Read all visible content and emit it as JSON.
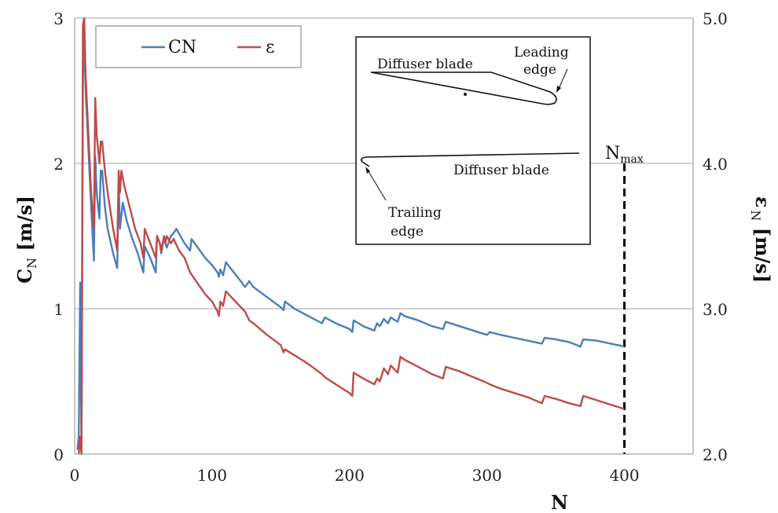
{
  "chart_data": {
    "type": "line",
    "title": "",
    "xlabel": "N",
    "ylabel_left": "C",
    "ylabel_left_sub": "N",
    "ylabel_left_unit": "[m/s]",
    "ylabel_right": "ε",
    "ylabel_right_sub": "N",
    "ylabel_right_unit": "[m/s]",
    "xlim": [
      0,
      450
    ],
    "ylim_left": [
      0,
      3
    ],
    "ylim_right": [
      2.0,
      5.0
    ],
    "xticks": [
      "0",
      "100",
      "200",
      "300",
      "400"
    ],
    "xtick_values": [
      0,
      100,
      200,
      300,
      400
    ],
    "yticks_left": [
      "0",
      "1",
      "2",
      "3"
    ],
    "ytick_values_left": [
      0,
      1,
      2,
      3
    ],
    "yticks_right": [
      "2.0",
      "3.0",
      "4.0",
      "5.0"
    ],
    "ytick_values_right": [
      2.0,
      3.0,
      4.0,
      5.0
    ],
    "grid": "horizontal",
    "legend_position": "top-left",
    "series": [
      {
        "name": "CN",
        "axis": "left",
        "color": "#4a7ebb",
        "x": [
          2,
          3,
          4,
          5,
          6,
          7,
          8,
          10,
          12,
          14,
          15,
          16,
          18,
          19,
          20,
          22,
          24,
          28,
          31,
          32,
          33,
          35,
          38,
          42,
          46,
          50,
          51,
          55,
          59,
          60,
          62,
          63,
          65,
          66,
          67,
          70,
          72,
          74,
          80,
          84,
          85,
          95,
          100,
          104,
          105,
          106,
          108,
          110,
          115,
          120,
          124,
          127,
          130,
          140,
          150,
          152,
          153,
          160,
          170,
          180,
          182,
          190,
          200,
          202,
          203,
          210,
          218,
          220,
          222,
          225,
          228,
          230,
          235,
          237,
          240,
          250,
          260,
          268,
          270,
          280,
          290,
          300,
          302,
          310,
          320,
          330,
          340,
          342,
          350,
          360,
          368,
          370,
          380,
          390,
          400
        ],
        "values": [
          0.03,
          0.12,
          1.18,
          0.05,
          2.55,
          2.9,
          2.5,
          2.1,
          1.7,
          1.33,
          2.05,
          1.8,
          1.62,
          1.95,
          1.95,
          1.7,
          1.55,
          1.38,
          1.28,
          1.88,
          1.55,
          1.73,
          1.6,
          1.48,
          1.38,
          1.25,
          1.43,
          1.35,
          1.25,
          1.5,
          1.45,
          1.38,
          1.5,
          1.45,
          1.42,
          1.5,
          1.52,
          1.55,
          1.45,
          1.4,
          1.48,
          1.35,
          1.3,
          1.25,
          1.22,
          1.27,
          1.23,
          1.32,
          1.26,
          1.2,
          1.15,
          1.19,
          1.15,
          1.08,
          1.01,
          0.99,
          1.05,
          1.0,
          0.95,
          0.9,
          0.94,
          0.9,
          0.86,
          0.84,
          0.92,
          0.88,
          0.85,
          0.9,
          0.88,
          0.93,
          0.9,
          0.94,
          0.91,
          0.97,
          0.95,
          0.92,
          0.88,
          0.86,
          0.91,
          0.88,
          0.85,
          0.82,
          0.84,
          0.82,
          0.8,
          0.78,
          0.76,
          0.8,
          0.79,
          0.77,
          0.74,
          0.79,
          0.78,
          0.76,
          0.74
        ]
      },
      {
        "name": "ε",
        "axis": "right",
        "color": "#be4b48",
        "x": [
          3,
          4,
          5,
          6,
          7,
          8,
          10,
          12,
          14,
          15,
          16,
          18,
          19,
          20,
          22,
          24,
          28,
          31,
          32,
          33,
          34,
          36,
          40,
          44,
          48,
          50,
          51,
          55,
          59,
          60,
          62,
          63,
          65,
          66,
          67,
          70,
          72,
          76,
          80,
          84,
          95,
          100,
          104,
          105,
          106,
          108,
          110,
          115,
          120,
          124,
          127,
          130,
          140,
          150,
          152,
          153,
          160,
          170,
          180,
          182,
          190,
          200,
          202,
          203,
          210,
          218,
          220,
          222,
          225,
          228,
          230,
          235,
          237,
          240,
          250,
          260,
          268,
          270,
          280,
          290,
          300,
          302,
          310,
          320,
          330,
          340,
          342,
          350,
          360,
          368,
          370,
          380,
          390,
          400
        ],
        "values": [
          2.0,
          2.12,
          2.0,
          4.95,
          5.0,
          4.6,
          4.2,
          3.8,
          3.55,
          4.45,
          4.2,
          4.0,
          4.15,
          4.15,
          3.95,
          3.8,
          3.55,
          3.4,
          3.95,
          3.8,
          3.95,
          3.85,
          3.7,
          3.55,
          3.45,
          3.35,
          3.55,
          3.45,
          3.35,
          3.5,
          3.45,
          3.4,
          3.5,
          3.45,
          3.5,
          3.45,
          3.48,
          3.4,
          3.35,
          3.25,
          3.1,
          3.05,
          2.98,
          2.95,
          3.05,
          3.02,
          3.12,
          3.07,
          3.02,
          2.98,
          2.92,
          2.9,
          2.82,
          2.75,
          2.7,
          2.72,
          2.68,
          2.62,
          2.55,
          2.53,
          2.48,
          2.42,
          2.4,
          2.56,
          2.52,
          2.48,
          2.52,
          2.5,
          2.59,
          2.55,
          2.61,
          2.56,
          2.67,
          2.65,
          2.6,
          2.55,
          2.52,
          2.6,
          2.57,
          2.53,
          2.49,
          2.48,
          2.45,
          2.42,
          2.39,
          2.35,
          2.4,
          2.38,
          2.35,
          2.33,
          2.4,
          2.37,
          2.34,
          2.31
        ]
      }
    ],
    "nmax": {
      "x": 400,
      "label": "N",
      "label_sub": "max",
      "style": "dashed"
    },
    "inset": {
      "top_blade_label": "Diffuser blade",
      "leading_edge_line1": "Leading",
      "leading_edge_line2": "edge",
      "bottom_blade_label": "Diffuser blade",
      "trailing_edge_line1": "Trailing",
      "trailing_edge_line2": "edge"
    }
  }
}
